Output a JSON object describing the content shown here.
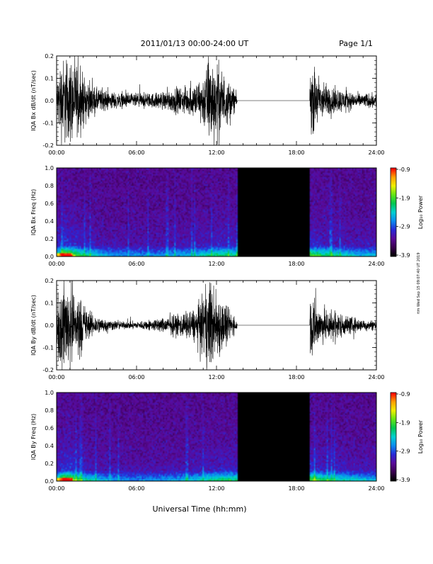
{
  "header": {
    "title": "2011/01/13  00:00-24:00 UT",
    "page_label": "Page 1/1"
  },
  "footer": {
    "xlabel": "Universal Time (hh:mm)",
    "side_stamp": "rtm Wed Sep 15 09:07:40 UT 2019"
  },
  "colors": {
    "background": "#ffffff",
    "axis": "#000000",
    "trace": "#000000",
    "gap_fill": "#000000",
    "colormap": [
      "#000000",
      "#3a0050",
      "#5a0a9a",
      "#2828d8",
      "#0a8cf0",
      "#00d2d2",
      "#00c850",
      "#64e614",
      "#f0f000",
      "#ffa000",
      "#ff0000"
    ]
  },
  "chart_data": [
    {
      "type": "line",
      "id": "bx-waveform",
      "ylabel": "IQA Bx dB/dt (nT/sec)",
      "xlim": [
        0,
        24
      ],
      "ylim": [
        -0.2,
        0.2
      ],
      "xticks": [
        "00:00",
        "06:00",
        "12:00",
        "18:00",
        "24:00"
      ],
      "yticks": [
        "-0.2",
        "-0.1",
        "0.0",
        "0.1",
        "0.2"
      ],
      "data_gap": [
        13.55,
        19.0
      ],
      "envelope": {
        "x": [
          0.0,
          0.3,
          0.6,
          1.0,
          1.5,
          2.0,
          2.5,
          3.0,
          4.0,
          5.0,
          6.0,
          7.0,
          8.0,
          8.5,
          9.0,
          9.5,
          10.0,
          10.5,
          11.0,
          11.3,
          11.6,
          12.0,
          12.5,
          13.0,
          13.4,
          13.55,
          19.0,
          19.3,
          19.7,
          20.0,
          20.5,
          21.0,
          21.5,
          22.0,
          22.5,
          23.0,
          23.5,
          24.0
        ],
        "amp": [
          0.1,
          0.22,
          0.24,
          0.24,
          0.2,
          0.14,
          0.09,
          0.07,
          0.05,
          0.04,
          0.04,
          0.04,
          0.05,
          0.06,
          0.07,
          0.07,
          0.08,
          0.1,
          0.14,
          0.22,
          0.24,
          0.22,
          0.16,
          0.1,
          0.06,
          0.03,
          0.16,
          0.18,
          0.14,
          0.1,
          0.08,
          0.07,
          0.06,
          0.05,
          0.04,
          0.04,
          0.04,
          0.04
        ]
      }
    },
    {
      "type": "heatmap",
      "id": "bx-spectrogram",
      "ylabel": "IQA Bx Freq (Hz)",
      "xlim": [
        0,
        24
      ],
      "ylim": [
        0.0,
        1.0
      ],
      "xticks": [
        "00:00",
        "06:00",
        "12:00",
        "18:00",
        "24:00"
      ],
      "yticks": [
        "0.0",
        "0.2",
        "0.4",
        "0.6",
        "0.8",
        "1.0"
      ],
      "data_gap": [
        13.55,
        19.0
      ],
      "colorbar": {
        "label": "Log₁₀ Power",
        "range": [
          -3.9,
          -0.9
        ],
        "ticks": [
          "-0.9",
          "-1.9",
          "-2.9",
          "-3.9"
        ]
      }
    },
    {
      "type": "line",
      "id": "by-waveform",
      "ylabel": "IQA By dB/dt (nT/sec)",
      "xlim": [
        0,
        24
      ],
      "ylim": [
        -0.2,
        0.2
      ],
      "xticks": [
        "00:00",
        "06:00",
        "12:00",
        "18:00",
        "24:00"
      ],
      "yticks": [
        "-0.2",
        "-0.1",
        "0.0",
        "0.1",
        "0.2"
      ],
      "data_gap": [
        13.55,
        19.0
      ],
      "envelope": {
        "x": [
          0.0,
          0.3,
          0.6,
          1.0,
          1.5,
          2.0,
          2.5,
          3.0,
          4.0,
          5.0,
          6.0,
          7.0,
          8.0,
          8.5,
          9.0,
          9.5,
          10.0,
          10.5,
          11.0,
          11.3,
          11.6,
          12.0,
          12.5,
          13.0,
          13.4,
          13.55,
          19.0,
          19.3,
          19.7,
          20.0,
          20.5,
          21.0,
          21.5,
          22.0,
          22.5,
          23.0,
          23.5,
          24.0
        ],
        "amp": [
          0.12,
          0.24,
          0.24,
          0.24,
          0.2,
          0.12,
          0.07,
          0.05,
          0.03,
          0.02,
          0.02,
          0.03,
          0.04,
          0.05,
          0.06,
          0.07,
          0.08,
          0.1,
          0.16,
          0.24,
          0.24,
          0.2,
          0.14,
          0.08,
          0.04,
          0.02,
          0.18,
          0.16,
          0.1,
          0.09,
          0.1,
          0.08,
          0.06,
          0.05,
          0.04,
          0.03,
          0.03,
          0.03
        ]
      }
    },
    {
      "type": "heatmap",
      "id": "by-spectrogram",
      "ylabel": "IQA By Freq (Hz)",
      "xlim": [
        0,
        24
      ],
      "ylim": [
        0.0,
        1.0
      ],
      "xticks": [
        "00:00",
        "06:00",
        "12:00",
        "18:00",
        "24:00"
      ],
      "yticks": [
        "0.0",
        "0.2",
        "0.4",
        "0.6",
        "0.8",
        "1.0"
      ],
      "data_gap": [
        13.55,
        19.0
      ],
      "colorbar": {
        "label": "Log₁₀ Power",
        "range": [
          -3.9,
          -0.9
        ],
        "ticks": [
          "-0.9",
          "-1.9",
          "-2.9",
          "-3.9"
        ]
      }
    }
  ]
}
